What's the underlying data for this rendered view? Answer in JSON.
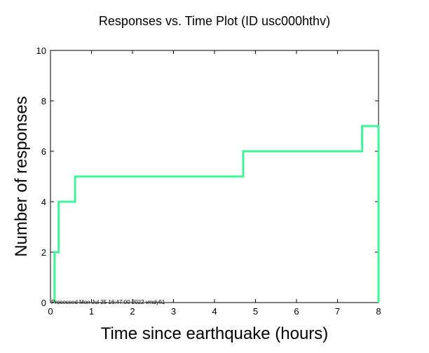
{
  "chart_data": {
    "type": "line",
    "step": true,
    "title": "Responses vs. Time Plot (ID usc000hthv)",
    "xlabel": "Time since earthquake (hours)",
    "ylabel": "Number of responses",
    "xlim": [
      0,
      8
    ],
    "ylim": [
      0,
      10
    ],
    "xticks": [
      0,
      1,
      2,
      3,
      4,
      5,
      6,
      7,
      8
    ],
    "yticks": [
      0,
      2,
      4,
      6,
      8,
      10
    ],
    "series": [
      {
        "name": "responses",
        "color": "#3ff598",
        "x": [
          0.1,
          0.1,
          0.2,
          0.2,
          0.6,
          0.6,
          4.7,
          4.7,
          7.6,
          7.6,
          8.0,
          8.0
        ],
        "y": [
          0,
          2,
          2,
          4,
          4,
          5,
          5,
          6,
          6,
          7,
          7,
          0
        ]
      }
    ],
    "footnote": "Processed Mon Jul 25 16:47:00 2022 vmdyfi1"
  }
}
